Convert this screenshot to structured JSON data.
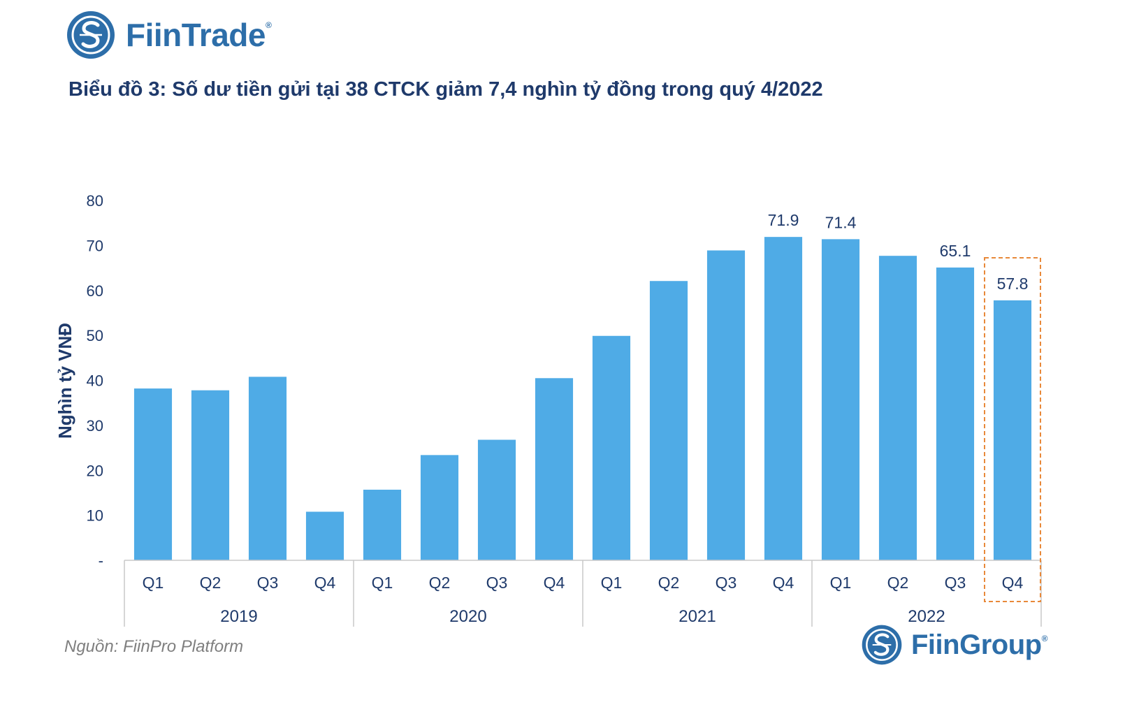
{
  "header": {
    "brand": "FiinTrade",
    "brand_mark": "®"
  },
  "footer": {
    "source": "Nguồn: FiinPro Platform",
    "brand": "FiinGroup",
    "brand_mark": "®"
  },
  "colors": {
    "bar": "#4fabe6",
    "text": "#1f3a6b",
    "brand": "#2d6ea9",
    "highlight": "#e8893a",
    "axis": "#c8c8c8"
  },
  "chart_data": {
    "type": "bar",
    "title": "Biểu đồ 3: Số dư tiền gửi tại 38 CTCK giảm 7,4 nghìn tỷ đồng trong quý 4/2022",
    "ylabel": "Nghìn tỷ VNĐ",
    "xlabel": "",
    "ylim": [
      0,
      80
    ],
    "yticks": [
      "-",
      "10",
      "20",
      "30",
      "40",
      "50",
      "60",
      "70",
      "80"
    ],
    "ytick_values": [
      0,
      10,
      20,
      30,
      40,
      50,
      60,
      70,
      80
    ],
    "categories": [
      "Q1",
      "Q2",
      "Q3",
      "Q4",
      "Q1",
      "Q2",
      "Q3",
      "Q4",
      "Q1",
      "Q2",
      "Q3",
      "Q4",
      "Q1",
      "Q2",
      "Q3",
      "Q4"
    ],
    "groups": [
      {
        "label": "2019",
        "count": 4
      },
      {
        "label": "2020",
        "count": 4
      },
      {
        "label": "2021",
        "count": 4
      },
      {
        "label": "2022",
        "count": 4
      }
    ],
    "values": [
      38.2,
      37.8,
      40.8,
      10.8,
      15.7,
      23.4,
      26.8,
      40.5,
      49.9,
      62.1,
      68.9,
      71.9,
      71.4,
      67.7,
      65.1,
      57.8
    ],
    "data_labels": [
      null,
      null,
      null,
      null,
      null,
      null,
      null,
      null,
      null,
      null,
      null,
      "71.9",
      "71.4",
      null,
      "65.1",
      "57.8"
    ],
    "highlight_index": 15
  }
}
